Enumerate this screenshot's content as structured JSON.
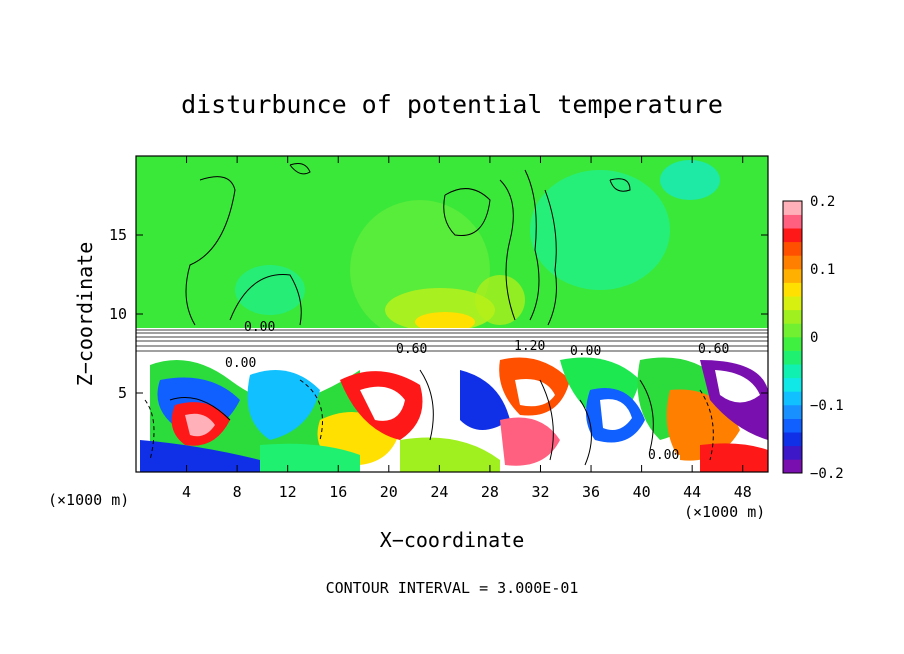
{
  "chart_data": {
    "type": "heatmap",
    "title": "disturbunce of potential temperature",
    "xlabel": "X−coordinate",
    "ylabel": "Z−coordinate",
    "x_unit_left": "(×1000 m)",
    "x_unit_right": "(×1000 m)",
    "xlim": [
      0,
      50
    ],
    "ylim": [
      0,
      20
    ],
    "xticks": [
      4,
      8,
      12,
      16,
      20,
      24,
      28,
      32,
      36,
      40,
      44,
      48
    ],
    "yticks": [
      5,
      10,
      15
    ],
    "colorbar": {
      "range": [
        -0.2,
        0.2
      ],
      "ticks": [
        0.2,
        0.1,
        0,
        -0.1,
        -0.2
      ],
      "tick_labels": [
        "0.2",
        "0.1",
        "0",
        "−0.1",
        "−0.2"
      ],
      "colors": [
        "#7a0fb0",
        "#3d18c8",
        "#1030e8",
        "#1060ff",
        "#1890ff",
        "#10c0ff",
        "#10e8e8",
        "#10f0b0",
        "#20f070",
        "#40f040",
        "#70f030",
        "#a0f020",
        "#d8f010",
        "#ffe000",
        "#ffb000",
        "#ff8000",
        "#ff5000",
        "#ff1818",
        "#ff6080",
        "#ffb0b8"
      ]
    },
    "contour_labels": [
      "0.00",
      "0.00",
      "0.60",
      "1.20",
      "0.00",
      "0.60",
      "0.00"
    ],
    "contour_interval_text": "CONTOUR INTERVAL = 3.000E-01",
    "regions": {
      "upper_layer": "weak positive (green), z > 9 km",
      "interface": "strong gradient near z ≈ 8.5–9 km",
      "lower_layer": "turbulent eddies with values −0.2 to 0.2, z < 8 km"
    }
  }
}
